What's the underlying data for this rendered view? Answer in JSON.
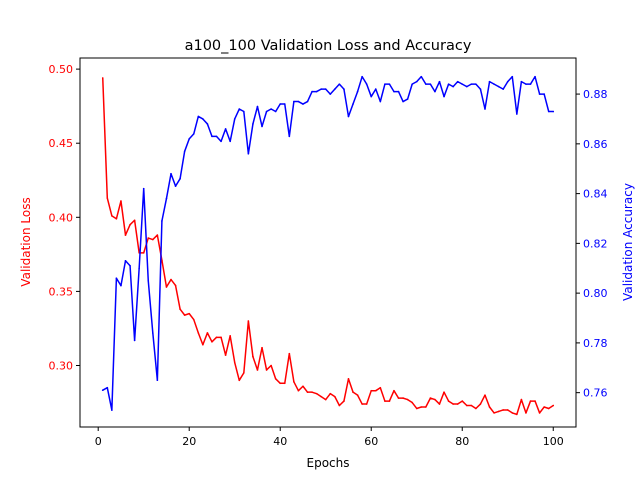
{
  "chart_data": {
    "type": "line",
    "title": "a100_100 Validation Loss and Accuracy",
    "xlabel": "Epochs",
    "ylabel_left": "Validation Loss",
    "ylabel_right": "Validation Accuracy",
    "xlim": [
      -4,
      105
    ],
    "ylim_left": [
      0.2585,
      0.5075
    ],
    "ylim_right": [
      0.7462,
      0.8945
    ],
    "x_ticks": [
      0,
      20,
      40,
      60,
      80,
      100
    ],
    "x_tick_labels": [
      "0",
      "20",
      "40",
      "60",
      "80",
      "100"
    ],
    "y_left_ticks": [
      0.3,
      0.35,
      0.4,
      0.45,
      0.5
    ],
    "y_left_tick_labels": [
      "0.30",
      "0.35",
      "0.40",
      "0.45",
      "0.50"
    ],
    "y_right_ticks": [
      0.76,
      0.78,
      0.8,
      0.82,
      0.84,
      0.86,
      0.88
    ],
    "y_right_tick_labels": [
      "0.76",
      "0.78",
      "0.80",
      "0.82",
      "0.84",
      "0.86",
      "0.88"
    ],
    "grid": false,
    "legend": "none",
    "series": [
      {
        "axis": "left",
        "color": "#ff0000",
        "x": [
          1,
          2,
          3,
          4,
          5,
          6,
          7,
          8,
          9,
          10,
          11,
          12,
          13,
          14,
          15,
          16,
          17,
          18,
          19,
          20,
          21,
          22,
          23,
          24,
          25,
          26,
          27,
          28,
          29,
          30,
          31,
          32,
          33,
          34,
          35,
          36,
          37,
          38,
          39,
          40,
          41,
          42,
          43,
          44,
          45,
          46,
          47,
          48,
          49,
          50,
          51,
          52,
          53,
          54,
          55,
          56,
          57,
          58,
          59,
          60,
          61,
          62,
          63,
          64,
          65,
          66,
          67,
          68,
          69,
          70,
          71,
          72,
          73,
          74,
          75,
          76,
          77,
          78,
          79,
          80,
          81,
          82,
          83,
          84,
          85,
          86,
          87,
          88,
          89,
          90,
          91,
          92,
          93,
          94,
          95,
          96,
          97,
          98,
          99,
          100
        ],
        "values": [
          0.494,
          0.413,
          0.401,
          0.399,
          0.411,
          0.388,
          0.395,
          0.398,
          0.376,
          0.376,
          0.386,
          0.385,
          0.388,
          0.371,
          0.353,
          0.358,
          0.354,
          0.338,
          0.334,
          0.335,
          0.331,
          0.322,
          0.314,
          0.322,
          0.316,
          0.319,
          0.319,
          0.307,
          0.32,
          0.302,
          0.29,
          0.295,
          0.33,
          0.306,
          0.297,
          0.312,
          0.297,
          0.3,
          0.291,
          0.288,
          0.288,
          0.308,
          0.289,
          0.283,
          0.286,
          0.282,
          0.282,
          0.281,
          0.279,
          0.277,
          0.281,
          0.279,
          0.273,
          0.276,
          0.291,
          0.282,
          0.28,
          0.274,
          0.274,
          0.283,
          0.283,
          0.285,
          0.276,
          0.276,
          0.283,
          0.278,
          0.278,
          0.277,
          0.275,
          0.271,
          0.272,
          0.272,
          0.278,
          0.277,
          0.274,
          0.282,
          0.276,
          0.274,
          0.274,
          0.276,
          0.273,
          0.273,
          0.271,
          0.274,
          0.28,
          0.272,
          0.268,
          0.269,
          0.27,
          0.27,
          0.268,
          0.267,
          0.277,
          0.268,
          0.276,
          0.276,
          0.268,
          0.272,
          0.271,
          0.273
        ]
      },
      {
        "axis": "right",
        "color": "#0000ff",
        "x": [
          1,
          2,
          3,
          4,
          5,
          6,
          7,
          8,
          9,
          10,
          11,
          12,
          13,
          14,
          15,
          16,
          17,
          18,
          19,
          20,
          21,
          22,
          23,
          24,
          25,
          26,
          27,
          28,
          29,
          30,
          31,
          32,
          33,
          34,
          35,
          36,
          37,
          38,
          39,
          40,
          41,
          42,
          43,
          44,
          45,
          46,
          47,
          48,
          49,
          50,
          51,
          52,
          53,
          54,
          55,
          56,
          57,
          58,
          59,
          60,
          61,
          62,
          63,
          64,
          65,
          66,
          67,
          68,
          69,
          70,
          71,
          72,
          73,
          74,
          75,
          76,
          77,
          78,
          79,
          80,
          81,
          82,
          83,
          84,
          85,
          86,
          87,
          88,
          89,
          90,
          91,
          92,
          93,
          94,
          95,
          96,
          97,
          98,
          99,
          100
        ],
        "values": [
          0.761,
          0.762,
          0.753,
          0.806,
          0.803,
          0.813,
          0.811,
          0.781,
          0.81,
          0.842,
          0.805,
          0.784,
          0.765,
          0.829,
          0.838,
          0.848,
          0.843,
          0.846,
          0.857,
          0.862,
          0.864,
          0.871,
          0.87,
          0.868,
          0.863,
          0.863,
          0.861,
          0.866,
          0.861,
          0.87,
          0.874,
          0.873,
          0.856,
          0.868,
          0.875,
          0.867,
          0.873,
          0.874,
          0.873,
          0.876,
          0.876,
          0.863,
          0.877,
          0.877,
          0.876,
          0.877,
          0.881,
          0.881,
          0.882,
          0.882,
          0.88,
          0.882,
          0.884,
          0.882,
          0.871,
          0.876,
          0.881,
          0.887,
          0.884,
          0.879,
          0.882,
          0.877,
          0.884,
          0.884,
          0.881,
          0.881,
          0.877,
          0.878,
          0.884,
          0.885,
          0.887,
          0.884,
          0.884,
          0.881,
          0.885,
          0.879,
          0.884,
          0.883,
          0.885,
          0.884,
          0.883,
          0.884,
          0.884,
          0.882,
          0.874,
          0.885,
          0.884,
          0.883,
          0.882,
          0.885,
          0.887,
          0.872,
          0.885,
          0.884,
          0.884,
          0.887,
          0.88,
          0.88,
          0.873,
          0.873
        ]
      }
    ]
  }
}
